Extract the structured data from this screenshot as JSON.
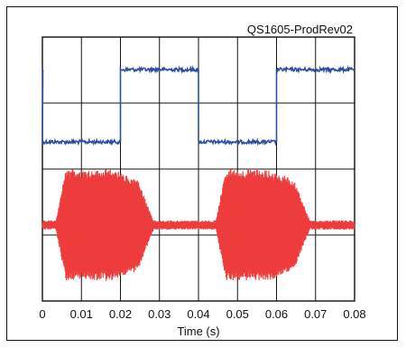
{
  "chart_data": {
    "type": "line",
    "title": "QS1605-ProdRev02",
    "xlabel": "Time (s)",
    "ylabel": "",
    "xlim": [
      0,
      0.08
    ],
    "x_ticks": [
      0,
      0.01,
      0.02,
      0.03,
      0.04,
      0.05,
      0.06,
      0.07,
      0.08
    ],
    "x_tick_labels": [
      "0",
      "0.01",
      "0.02",
      "0.03",
      "0.04",
      "0.05",
      "0.06",
      "0.07",
      "0.08"
    ],
    "grid": true,
    "series": [
      {
        "color": "#2a4fa3",
        "description": "square-wave control signal",
        "x": [
          0,
          0.02,
          0.02,
          0.04,
          0.04,
          0.06,
          0.06,
          0.08
        ],
        "y": [
          0.0,
          0.0,
          1.0,
          1.0,
          0.0,
          0.0,
          1.0,
          1.0
        ]
      },
      {
        "color": "#ee3b3b",
        "description": "oscillating output burst envelope",
        "x": [
          0,
          0.0035,
          0.006,
          0.0185,
          0.0245,
          0.0285,
          0.0445,
          0.047,
          0.0585,
          0.0645,
          0.0685,
          0.08
        ],
        "amplitude": [
          0.02,
          0.02,
          1.0,
          1.0,
          0.8,
          0.02,
          0.02,
          1.0,
          1.0,
          0.8,
          0.02,
          0.02
        ]
      }
    ]
  }
}
